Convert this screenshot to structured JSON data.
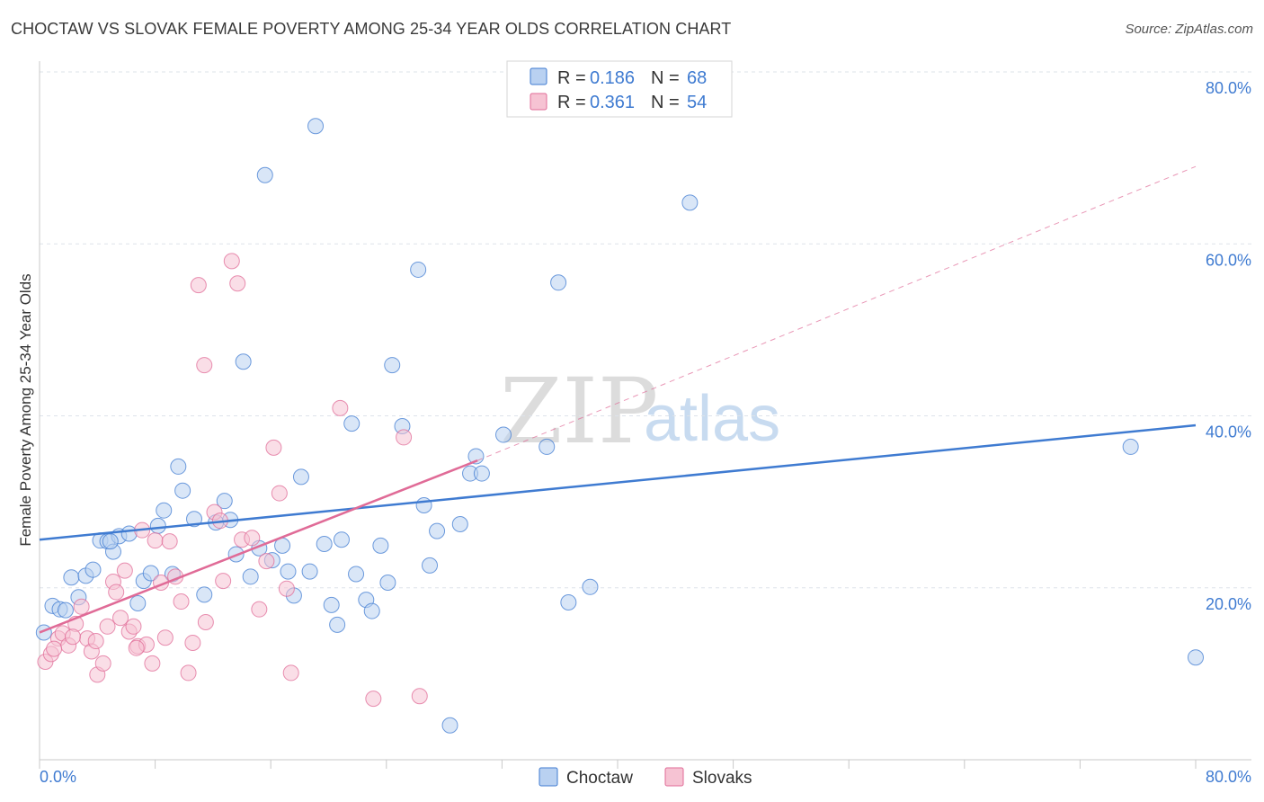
{
  "title": "CHOCTAW VS SLOVAK FEMALE POVERTY AMONG 25-34 YEAR OLDS CORRELATION CHART",
  "source": "Source: ZipAtlas.com",
  "watermark": {
    "zip": "ZIP",
    "atlas": "atlas"
  },
  "colors": {
    "choctaw": "#3f7bd1",
    "choctaw_fill": "#b9d1f1",
    "slovaks": "#e06b97",
    "slovaks_fill": "#f6c3d3",
    "grid": "#dde3ea",
    "tick_text": "#3f7bd1"
  },
  "legend": {
    "rows": [
      {
        "r_label": "R = ",
        "r_value": "0.186",
        "n_label": "N = ",
        "n_value": "68"
      },
      {
        "r_label": "R = ",
        "r_value": "0.361",
        "n_label": "N = ",
        "n_value": "54"
      }
    ]
  },
  "bottom_legend": [
    "Choctaw",
    "Slovaks"
  ],
  "chart_data": {
    "type": "scatter",
    "title": "CHOCTAW VS SLOVAK FEMALE POVERTY AMONG 25-34 YEAR OLDS CORRELATION CHART",
    "xlabel": "",
    "ylabel": "Female Poverty Among 25-34 Year Olds",
    "xlim": [
      0,
      80
    ],
    "ylim": [
      0,
      80
    ],
    "x_tick_labels": [
      "0.0%",
      "80.0%"
    ],
    "y_tick_labels": [
      "20.0%",
      "40.0%",
      "60.0%",
      "80.0%"
    ],
    "y_ticks": [
      20,
      40,
      60,
      80
    ],
    "grid": true,
    "legend_position": "top-center",
    "series": [
      {
        "name": "Choctaw",
        "r": 0.186,
        "n": 68,
        "trend": {
          "x": [
            0,
            80
          ],
          "y": [
            25.6,
            38.9
          ],
          "style": "solid"
        },
        "points": [
          [
            0.3,
            14.8
          ],
          [
            0.9,
            17.9
          ],
          [
            1.4,
            17.5
          ],
          [
            1.8,
            17.4
          ],
          [
            2.2,
            21.2
          ],
          [
            2.7,
            18.9
          ],
          [
            3.2,
            21.4
          ],
          [
            3.7,
            22.1
          ],
          [
            4.2,
            25.5
          ],
          [
            4.7,
            25.4
          ],
          [
            5.1,
            24.2
          ],
          [
            5.5,
            26.0
          ],
          [
            6.2,
            26.3
          ],
          [
            6.8,
            18.2
          ],
          [
            7.2,
            20.8
          ],
          [
            7.7,
            21.7
          ],
          [
            8.2,
            27.2
          ],
          [
            8.6,
            29.0
          ],
          [
            9.2,
            21.6
          ],
          [
            9.6,
            34.1
          ],
          [
            9.9,
            31.3
          ],
          [
            10.7,
            28.0
          ],
          [
            11.4,
            19.2
          ],
          [
            12.2,
            27.6
          ],
          [
            12.8,
            30.1
          ],
          [
            13.2,
            27.9
          ],
          [
            13.6,
            23.9
          ],
          [
            14.1,
            46.3
          ],
          [
            14.6,
            21.3
          ],
          [
            15.2,
            24.6
          ],
          [
            15.6,
            68.0
          ],
          [
            16.1,
            23.2
          ],
          [
            16.8,
            24.9
          ],
          [
            17.2,
            21.9
          ],
          [
            17.6,
            19.1
          ],
          [
            18.1,
            32.9
          ],
          [
            18.7,
            21.9
          ],
          [
            19.1,
            73.7
          ],
          [
            19.7,
            25.1
          ],
          [
            20.2,
            18.0
          ],
          [
            20.6,
            15.7
          ],
          [
            20.9,
            25.6
          ],
          [
            21.6,
            39.1
          ],
          [
            21.9,
            21.6
          ],
          [
            22.6,
            18.6
          ],
          [
            23.0,
            17.3
          ],
          [
            23.6,
            24.9
          ],
          [
            24.1,
            20.6
          ],
          [
            24.4,
            45.9
          ],
          [
            25.1,
            38.8
          ],
          [
            26.2,
            57.0
          ],
          [
            26.6,
            29.6
          ],
          [
            27.0,
            22.6
          ],
          [
            27.5,
            26.6
          ],
          [
            28.4,
            4.0
          ],
          [
            29.1,
            27.4
          ],
          [
            29.8,
            33.3
          ],
          [
            30.2,
            35.3
          ],
          [
            30.6,
            33.3
          ],
          [
            32.1,
            37.8
          ],
          [
            35.9,
            55.5
          ],
          [
            35.1,
            36.4
          ],
          [
            36.6,
            18.3
          ],
          [
            38.1,
            20.1
          ],
          [
            45.0,
            64.8
          ],
          [
            75.5,
            36.4
          ],
          [
            80.0,
            11.9
          ],
          [
            4.9,
            25.4
          ]
        ]
      },
      {
        "name": "Slovaks",
        "r": 0.361,
        "n": 54,
        "trend": {
          "x": [
            0,
            30.3
          ],
          "y": [
            14.8,
            34.8
          ],
          "style": "solid",
          "extended": {
            "x": [
              30.3,
              80
            ],
            "y": [
              34.8,
              69.0
            ],
            "style": "dashed"
          }
        },
        "points": [
          [
            0.4,
            11.4
          ],
          [
            0.8,
            12.3
          ],
          [
            1.3,
            14.1
          ],
          [
            1.6,
            14.7
          ],
          [
            2.0,
            13.3
          ],
          [
            2.5,
            15.8
          ],
          [
            2.9,
            17.8
          ],
          [
            3.3,
            14.1
          ],
          [
            3.6,
            12.6
          ],
          [
            4.0,
            9.9
          ],
          [
            4.4,
            11.2
          ],
          [
            4.7,
            15.5
          ],
          [
            5.1,
            20.7
          ],
          [
            5.3,
            19.5
          ],
          [
            5.6,
            16.5
          ],
          [
            5.9,
            22.0
          ],
          [
            6.2,
            14.9
          ],
          [
            6.5,
            15.5
          ],
          [
            6.8,
            13.2
          ],
          [
            7.1,
            26.7
          ],
          [
            7.4,
            13.4
          ],
          [
            7.8,
            11.2
          ],
          [
            8.0,
            25.5
          ],
          [
            8.4,
            20.6
          ],
          [
            8.7,
            14.2
          ],
          [
            9.0,
            25.4
          ],
          [
            9.4,
            21.3
          ],
          [
            9.8,
            18.4
          ],
          [
            10.3,
            10.1
          ],
          [
            10.6,
            13.6
          ],
          [
            11.0,
            55.2
          ],
          [
            11.4,
            45.9
          ],
          [
            11.5,
            16.0
          ],
          [
            12.1,
            28.8
          ],
          [
            12.7,
            20.8
          ],
          [
            13.3,
            58.0
          ],
          [
            13.7,
            55.4
          ],
          [
            14.0,
            25.6
          ],
          [
            14.7,
            25.8
          ],
          [
            15.2,
            17.5
          ],
          [
            15.7,
            23.1
          ],
          [
            16.2,
            36.3
          ],
          [
            16.6,
            31.0
          ],
          [
            17.1,
            19.9
          ],
          [
            17.4,
            10.1
          ],
          [
            20.8,
            40.9
          ],
          [
            23.1,
            7.1
          ],
          [
            25.2,
            37.5
          ],
          [
            26.3,
            7.4
          ],
          [
            1.0,
            12.9
          ],
          [
            2.3,
            14.3
          ],
          [
            3.9,
            13.8
          ],
          [
            6.7,
            13.0
          ],
          [
            12.5,
            27.8
          ]
        ]
      }
    ]
  }
}
